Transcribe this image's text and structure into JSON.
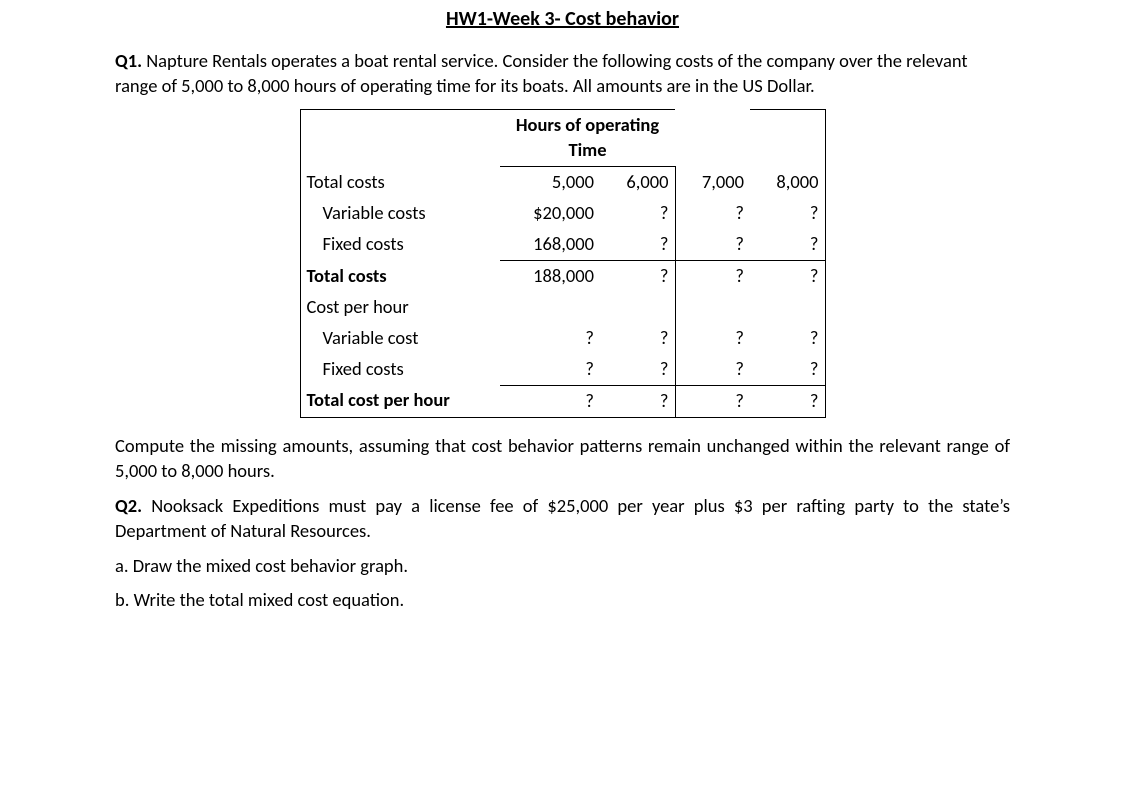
{
  "title": "HW1-Week 3- Cost behavior",
  "q1": {
    "label": "Q1.",
    "text": "Napture Rentals operates a boat rental service. Consider the following costs of the company over the relevant range of 5,000 to 8,000 hours of operating time for its boats. All amounts are in the US Dollar."
  },
  "table": {
    "header_span": "Hours of operating Time",
    "rows": {
      "total_costs_header": {
        "label": "Total costs",
        "c5": "5,000",
        "c6": "6,000",
        "c7": "7,000",
        "c8": "8,000"
      },
      "variable_costs": {
        "label": "Variable costs",
        "c5": "$20,000",
        "c6": "?",
        "c7": "?",
        "c8": "?"
      },
      "fixed_costs": {
        "label": "Fixed costs",
        "c5": "168,000",
        "c6": "?",
        "c7": "?",
        "c8": "?"
      },
      "total_costs": {
        "label": "Total costs",
        "c5": "188,000",
        "c6": "?",
        "c7": "?",
        "c8": "?"
      },
      "cost_per_hour": {
        "label": "Cost per hour",
        "c5": "",
        "c6": "",
        "c7": "",
        "c8": ""
      },
      "variable_cost": {
        "label": "Variable cost",
        "c5": "?",
        "c6": "?",
        "c7": "?",
        "c8": "?"
      },
      "fixed_costs_per": {
        "label": "Fixed costs",
        "c5": "?",
        "c6": "?",
        "c7": "?",
        "c8": "?"
      },
      "total_cost_per_hour": {
        "label": "Total cost per hour",
        "c5": "?",
        "c6": "?",
        "c7": "?",
        "c8": "?"
      }
    }
  },
  "q1_instruction": "Compute the missing amounts, assuming that cost behavior patterns remain unchanged within the relevant range of 5,000 to 8,000 hours.",
  "q2": {
    "label": "Q2.",
    "text": "Nooksack Expeditions must pay a license fee of $25,000 per year plus $3 per rafting party to the state’s Department of Natural Resources.",
    "a": "a. Draw the mixed cost behavior graph.",
    "b": "b. Write the total mixed cost equation."
  }
}
